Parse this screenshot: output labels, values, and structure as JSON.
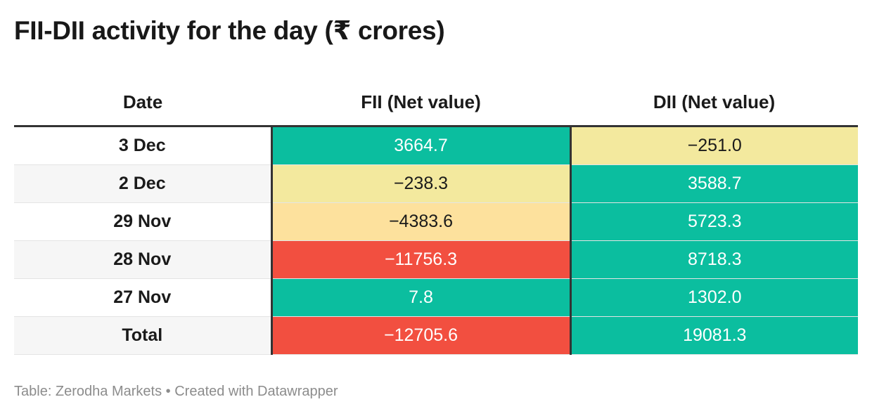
{
  "title": "FII-DII activity for the day (₹ crores)",
  "source_note": "Table: Zerodha Markets • Created with Datawrapper",
  "chart_data": {
    "type": "table",
    "columns": [
      "Date",
      "FII (Net value)",
      "DII (Net value)"
    ],
    "rows": [
      {
        "date": "3 Dec",
        "fii": "3664.7",
        "dii": "−251.0",
        "fii_value": 3664.7,
        "dii_value": -251.0
      },
      {
        "date": "2 Dec",
        "fii": "−238.3",
        "dii": "3588.7",
        "fii_value": -238.3,
        "dii_value": 3588.7
      },
      {
        "date": "29 Nov",
        "fii": "−4383.6",
        "dii": "5723.3",
        "fii_value": -4383.6,
        "dii_value": 5723.3
      },
      {
        "date": "28 Nov",
        "fii": "−11756.3",
        "dii": "8718.3",
        "fii_value": -11756.3,
        "dii_value": 8718.3
      },
      {
        "date": "27 Nov",
        "fii": "7.8",
        "dii": "1302.0",
        "fii_value": 7.8,
        "dii_value": 1302.0
      },
      {
        "date": "Total",
        "fii": "−12705.6",
        "dii": "19081.3",
        "fii_value": -12705.6,
        "dii_value": 19081.3
      }
    ],
    "colors": {
      "positive": "#0bbe9f",
      "slightly_negative": "#f3e99e",
      "moderately_negative": "#fde19d",
      "strongly_negative": "#f24f40",
      "light_text": "#ffffff",
      "dark_text": "#1a1a1a"
    }
  }
}
